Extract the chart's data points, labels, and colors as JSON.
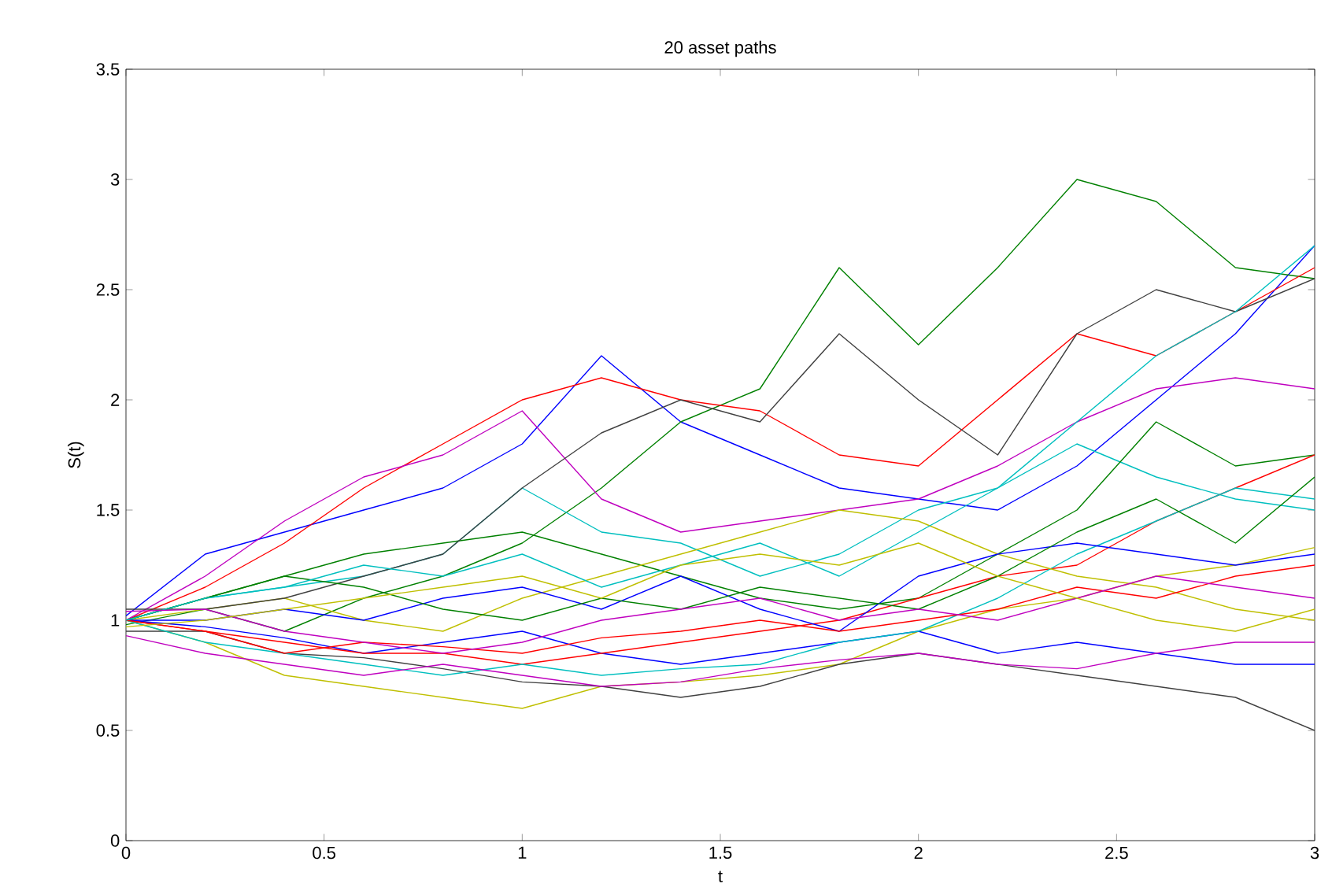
{
  "chart_data": {
    "type": "line",
    "title": "20 asset paths",
    "xlabel": "t",
    "ylabel": "S(t)",
    "x": [
      0,
      0.2,
      0.4,
      0.6,
      0.8,
      1.0,
      1.2,
      1.4,
      1.6,
      1.8,
      2.0,
      2.2,
      2.4,
      2.6,
      2.8,
      3.0
    ],
    "xlim": [
      0,
      3
    ],
    "ylim": [
      0,
      3.5
    ],
    "xticks": [
      0,
      0.5,
      1,
      1.5,
      2,
      2.5,
      3
    ],
    "yticks": [
      0,
      0.5,
      1,
      1.5,
      2,
      2.5,
      3,
      3.5
    ],
    "grid": false,
    "marker": "none",
    "line_style": "solid",
    "series": [
      {
        "color": "#0000ff",
        "values": [
          1.02,
          1.3,
          1.4,
          1.5,
          1.6,
          1.8,
          2.2,
          1.9,
          1.75,
          1.6,
          1.55,
          1.5,
          1.7,
          2.0,
          2.3,
          2.7
        ]
      },
      {
        "color": "#008000",
        "values": [
          0.98,
          1.05,
          0.95,
          1.1,
          1.2,
          1.35,
          1.6,
          1.9,
          2.05,
          2.6,
          2.25,
          2.6,
          3.0,
          2.9,
          2.6,
          2.55
        ]
      },
      {
        "color": "#ff0000",
        "values": [
          1,
          1.15,
          1.35,
          1.6,
          1.8,
          2.0,
          2.1,
          2.0,
          1.95,
          1.75,
          1.7,
          2.0,
          2.3,
          2.2,
          2.4,
          2.6
        ]
      },
      {
        "color": "#00bfbf",
        "values": [
          1,
          1.1,
          1.15,
          1.2,
          1.3,
          1.6,
          1.4,
          1.35,
          1.2,
          1.3,
          1.5,
          1.6,
          1.8,
          1.65,
          1.55,
          1.5
        ]
      },
      {
        "color": "#bf00bf",
        "values": [
          1,
          1.2,
          1.45,
          1.65,
          1.75,
          1.95,
          1.55,
          1.4,
          1.45,
          1.5,
          1.55,
          1.7,
          1.9,
          2.05,
          2.1,
          2.05
        ]
      },
      {
        "color": "#bfbf00",
        "values": [
          1,
          0.9,
          0.75,
          0.7,
          0.65,
          0.6,
          0.7,
          0.72,
          0.75,
          0.8,
          0.95,
          1.05,
          1.1,
          1.2,
          1.25,
          1.33
        ]
      },
      {
        "color": "#404040",
        "values": [
          0.95,
          0.95,
          0.85,
          0.83,
          0.78,
          0.72,
          0.7,
          0.65,
          0.7,
          0.8,
          0.85,
          0.8,
          0.75,
          0.7,
          0.65,
          0.5
        ]
      },
      {
        "color": "#0000ff",
        "values": [
          1,
          0.97,
          0.92,
          0.85,
          0.9,
          0.95,
          0.85,
          0.8,
          0.85,
          0.9,
          0.95,
          0.85,
          0.9,
          0.85,
          0.8,
          0.8
        ]
      },
      {
        "color": "#008000",
        "values": [
          1,
          1.1,
          1.2,
          1.3,
          1.35,
          1.4,
          1.3,
          1.2,
          1.1,
          1.05,
          1.1,
          1.3,
          1.5,
          1.9,
          1.7,
          1.75
        ]
      },
      {
        "color": "#ff0000",
        "values": [
          1,
          0.95,
          0.9,
          0.85,
          0.85,
          0.8,
          0.85,
          0.9,
          0.95,
          1.0,
          1.1,
          1.2,
          1.25,
          1.45,
          1.6,
          1.75
        ]
      },
      {
        "color": "#00bfbf",
        "values": [
          1,
          0.9,
          0.85,
          0.8,
          0.75,
          0.8,
          0.75,
          0.78,
          0.8,
          0.9,
          0.95,
          1.1,
          1.3,
          1.45,
          1.6,
          1.55
        ]
      },
      {
        "color": "#bf00bf",
        "values": [
          0.93,
          0.85,
          0.8,
          0.75,
          0.8,
          0.75,
          0.7,
          0.72,
          0.78,
          0.82,
          0.85,
          0.8,
          0.78,
          0.85,
          0.9,
          0.9
        ]
      },
      {
        "color": "#bfbf00",
        "values": [
          1,
          1.05,
          1.1,
          1.0,
          0.95,
          1.1,
          1.2,
          1.3,
          1.4,
          1.5,
          1.45,
          1.3,
          1.2,
          1.15,
          1.05,
          1.0
        ]
      },
      {
        "color": "#404040",
        "values": [
          1.05,
          1.05,
          1.1,
          1.2,
          1.3,
          1.6,
          1.85,
          2.0,
          1.9,
          2.3,
          2.0,
          1.75,
          2.3,
          2.5,
          2.4,
          2.55
        ]
      },
      {
        "color": "#0000ff",
        "values": [
          1,
          1.0,
          1.05,
          1.0,
          1.1,
          1.15,
          1.05,
          1.2,
          1.05,
          0.95,
          1.2,
          1.3,
          1.35,
          1.3,
          1.25,
          1.3
        ]
      },
      {
        "color": "#008000",
        "values": [
          1,
          1.1,
          1.2,
          1.15,
          1.05,
          1.0,
          1.1,
          1.05,
          1.15,
          1.1,
          1.05,
          1.2,
          1.4,
          1.55,
          1.35,
          1.65
        ]
      },
      {
        "color": "#ff0000",
        "values": [
          1,
          0.95,
          0.85,
          0.9,
          0.88,
          0.85,
          0.92,
          0.95,
          1.0,
          0.95,
          1.0,
          1.05,
          1.15,
          1.1,
          1.2,
          1.25
        ]
      },
      {
        "color": "#00bfbf",
        "values": [
          1,
          1.1,
          1.15,
          1.25,
          1.2,
          1.3,
          1.15,
          1.25,
          1.35,
          1.2,
          1.4,
          1.6,
          1.9,
          2.2,
          2.4,
          2.7
        ]
      },
      {
        "color": "#bf00bf",
        "values": [
          1.04,
          1.05,
          0.95,
          0.9,
          0.85,
          0.9,
          1.0,
          1.05,
          1.1,
          1.0,
          1.05,
          1.0,
          1.1,
          1.2,
          1.15,
          1.1
        ]
      },
      {
        "color": "#bfbf00",
        "values": [
          0.97,
          1.0,
          1.05,
          1.1,
          1.15,
          1.2,
          1.1,
          1.25,
          1.3,
          1.25,
          1.35,
          1.2,
          1.1,
          1.0,
          0.95,
          1.05
        ]
      }
    ]
  }
}
